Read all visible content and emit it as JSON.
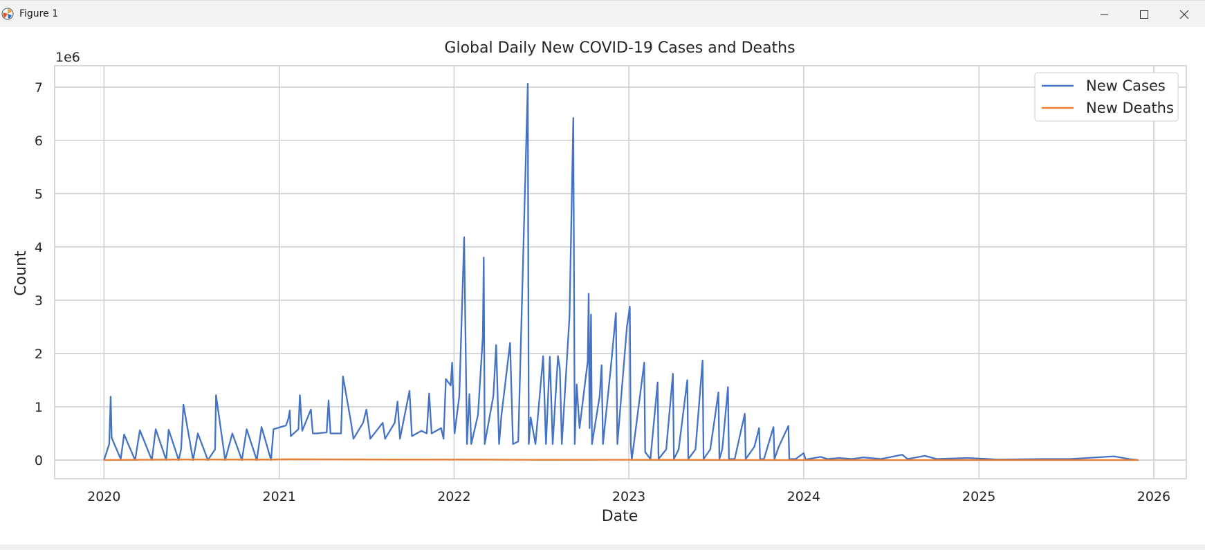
{
  "window": {
    "title": "Figure 1",
    "controls": [
      "minimize-icon",
      "maximize-icon",
      "close-icon"
    ]
  },
  "chart_data": {
    "type": "line",
    "title": "Global Daily New COVID-19 Cases and Deaths",
    "xlabel": "Date",
    "ylabel": "Count",
    "y_offset_label": "1e6",
    "xlim": [
      "2019-09-20",
      "2026-03-10"
    ],
    "ylim": [
      -0.35,
      7.4
    ],
    "x_ticks": [
      "2020",
      "2021",
      "2022",
      "2023",
      "2024",
      "2025",
      "2026"
    ],
    "y_ticks": [
      "0",
      "1",
      "2",
      "3",
      "4",
      "5",
      "6",
      "7"
    ],
    "grid": true,
    "legend": "top-right",
    "series": [
      {
        "name": "New Cases",
        "color": "#4472c4",
        "points": [
          [
            "2020-01-01",
            0.0
          ],
          [
            "2020-01-12",
            0.3
          ],
          [
            "2020-01-15",
            1.19
          ],
          [
            "2020-01-17",
            0.42
          ],
          [
            "2020-02-05",
            0.02
          ],
          [
            "2020-02-12",
            0.48
          ],
          [
            "2020-03-06",
            0.0
          ],
          [
            "2020-03-16",
            0.56
          ],
          [
            "2020-04-10",
            0.0
          ],
          [
            "2020-04-18",
            0.58
          ],
          [
            "2020-05-10",
            0.0
          ],
          [
            "2020-05-15",
            0.57
          ],
          [
            "2020-06-05",
            0.0
          ],
          [
            "2020-06-10",
            0.2
          ],
          [
            "2020-06-15",
            1.04
          ],
          [
            "2020-07-05",
            0.0
          ],
          [
            "2020-07-15",
            0.5
          ],
          [
            "2020-08-05",
            0.0
          ],
          [
            "2020-08-20",
            0.2
          ],
          [
            "2020-08-22",
            1.22
          ],
          [
            "2020-09-10",
            0.0
          ],
          [
            "2020-09-25",
            0.5
          ],
          [
            "2020-10-15",
            0.0
          ],
          [
            "2020-10-25",
            0.58
          ],
          [
            "2020-11-15",
            0.0
          ],
          [
            "2020-11-25",
            0.62
          ],
          [
            "2020-12-15",
            0.0
          ],
          [
            "2020-12-20",
            0.58
          ],
          [
            "2021-01-15",
            0.65
          ],
          [
            "2021-01-20",
            0.78
          ],
          [
            "2021-01-23",
            0.93
          ],
          [
            "2021-01-25",
            0.45
          ],
          [
            "2021-02-10",
            0.58
          ],
          [
            "2021-02-13",
            1.22
          ],
          [
            "2021-02-18",
            0.55
          ],
          [
            "2021-03-08",
            0.95
          ],
          [
            "2021-03-12",
            0.5
          ],
          [
            "2021-03-20",
            0.5
          ],
          [
            "2021-04-10",
            0.52
          ],
          [
            "2021-04-14",
            1.12
          ],
          [
            "2021-04-18",
            0.5
          ],
          [
            "2021-05-10",
            0.5
          ],
          [
            "2021-05-14",
            1.57
          ],
          [
            "2021-05-30",
            0.75
          ],
          [
            "2021-06-05",
            0.4
          ],
          [
            "2021-06-25",
            0.7
          ],
          [
            "2021-07-02",
            0.95
          ],
          [
            "2021-07-10",
            0.4
          ],
          [
            "2021-08-05",
            0.7
          ],
          [
            "2021-08-10",
            0.4
          ],
          [
            "2021-08-30",
            0.7
          ],
          [
            "2021-09-05",
            1.1
          ],
          [
            "2021-09-10",
            0.4
          ],
          [
            "2021-09-30",
            1.3
          ],
          [
            "2021-10-05",
            0.45
          ],
          [
            "2021-10-25",
            0.55
          ],
          [
            "2021-11-05",
            0.5
          ],
          [
            "2021-11-10",
            1.25
          ],
          [
            "2021-11-15",
            0.5
          ],
          [
            "2021-12-05",
            0.6
          ],
          [
            "2021-12-10",
            0.4
          ],
          [
            "2021-12-15",
            1.52
          ],
          [
            "2021-12-25",
            1.4
          ],
          [
            "2021-12-28",
            1.83
          ],
          [
            "2022-01-02",
            0.5
          ],
          [
            "2022-01-12",
            1.2
          ],
          [
            "2022-01-22",
            4.18
          ],
          [
            "2022-01-28",
            0.3
          ],
          [
            "2022-02-02",
            1.24
          ],
          [
            "2022-02-06",
            0.3
          ],
          [
            "2022-02-20",
            0.85
          ],
          [
            "2022-03-02",
            2.32
          ],
          [
            "2022-03-04",
            3.8
          ],
          [
            "2022-03-06",
            0.3
          ],
          [
            "2022-03-24",
            1.2
          ],
          [
            "2022-03-30",
            2.16
          ],
          [
            "2022-04-05",
            0.3
          ],
          [
            "2022-04-10",
            0.85
          ],
          [
            "2022-04-28",
            2.2
          ],
          [
            "2022-05-04",
            0.3
          ],
          [
            "2022-05-15",
            0.35
          ],
          [
            "2022-06-04",
            7.06
          ],
          [
            "2022-06-06",
            0.3
          ],
          [
            "2022-06-10",
            0.8
          ],
          [
            "2022-06-20",
            0.3
          ],
          [
            "2022-07-06",
            1.95
          ],
          [
            "2022-07-12",
            0.3
          ],
          [
            "2022-07-20",
            1.94
          ],
          [
            "2022-07-26",
            0.3
          ],
          [
            "2022-08-06",
            1.95
          ],
          [
            "2022-08-10",
            1.7
          ],
          [
            "2022-08-14",
            0.3
          ],
          [
            "2022-08-30",
            2.7
          ],
          [
            "2022-09-07",
            6.42
          ],
          [
            "2022-09-10",
            0.3
          ],
          [
            "2022-09-14",
            1.42
          ],
          [
            "2022-09-20",
            0.6
          ],
          [
            "2022-10-07",
            1.85
          ],
          [
            "2022-10-09",
            3.12
          ],
          [
            "2022-10-11",
            0.6
          ],
          [
            "2022-10-14",
            2.73
          ],
          [
            "2022-10-16",
            0.3
          ],
          [
            "2022-11-01",
            1.2
          ],
          [
            "2022-11-05",
            1.78
          ],
          [
            "2022-11-08",
            0.3
          ],
          [
            "2022-11-25",
            1.8
          ],
          [
            "2022-12-05",
            2.76
          ],
          [
            "2022-12-08",
            0.3
          ],
          [
            "2022-12-28",
            2.5
          ],
          [
            "2023-01-03",
            2.88
          ],
          [
            "2023-01-05",
            0.3
          ],
          [
            "2023-01-07",
            0.02
          ],
          [
            "2023-01-10",
            0.2
          ],
          [
            "2023-02-02",
            1.83
          ],
          [
            "2023-02-04",
            0.15
          ],
          [
            "2023-02-15",
            0.02
          ],
          [
            "2023-03-02",
            1.46
          ],
          [
            "2023-03-04",
            0.02
          ],
          [
            "2023-03-20",
            0.2
          ],
          [
            "2023-04-03",
            1.62
          ],
          [
            "2023-04-05",
            0.02
          ],
          [
            "2023-04-15",
            0.2
          ],
          [
            "2023-05-03",
            1.5
          ],
          [
            "2023-05-05",
            0.02
          ],
          [
            "2023-05-20",
            0.2
          ],
          [
            "2023-06-04",
            1.87
          ],
          [
            "2023-06-06",
            0.02
          ],
          [
            "2023-06-20",
            0.2
          ],
          [
            "2023-07-07",
            1.27
          ],
          [
            "2023-07-09",
            0.02
          ],
          [
            "2023-07-15",
            0.2
          ],
          [
            "2023-07-27",
            1.37
          ],
          [
            "2023-07-29",
            0.02
          ],
          [
            "2023-08-10",
            0.02
          ],
          [
            "2023-08-31",
            0.87
          ],
          [
            "2023-09-02",
            0.02
          ],
          [
            "2023-09-20",
            0.25
          ],
          [
            "2023-09-30",
            0.6
          ],
          [
            "2023-10-02",
            0.02
          ],
          [
            "2023-10-10",
            0.02
          ],
          [
            "2023-10-30",
            0.62
          ],
          [
            "2023-11-01",
            0.02
          ],
          [
            "2023-11-10",
            0.25
          ],
          [
            "2023-11-30",
            0.64
          ],
          [
            "2023-12-02",
            0.02
          ],
          [
            "2023-12-15",
            0.02
          ],
          [
            "2024-01-01",
            0.13
          ],
          [
            "2024-01-05",
            0.01
          ],
          [
            "2024-02-05",
            0.06
          ],
          [
            "2024-02-20",
            0.02
          ],
          [
            "2024-03-15",
            0.04
          ],
          [
            "2024-04-10",
            0.02
          ],
          [
            "2024-05-05",
            0.05
          ],
          [
            "2024-06-10",
            0.02
          ],
          [
            "2024-07-25",
            0.1
          ],
          [
            "2024-08-05",
            0.02
          ],
          [
            "2024-09-10",
            0.08
          ],
          [
            "2024-10-05",
            0.02
          ],
          [
            "2024-12-10",
            0.04
          ],
          [
            "2025-02-10",
            0.01
          ],
          [
            "2025-05-10",
            0.02
          ],
          [
            "2025-07-10",
            0.02
          ],
          [
            "2025-10-10",
            0.07
          ],
          [
            "2025-11-10",
            0.02
          ],
          [
            "2025-11-30",
            0.0
          ]
        ]
      },
      {
        "name": "New Deaths",
        "color": "#ed7d31",
        "points": [
          [
            "2020-01-01",
            0.0
          ],
          [
            "2020-06-15",
            0.012
          ],
          [
            "2020-12-15",
            0.011
          ],
          [
            "2021-01-20",
            0.016
          ],
          [
            "2021-04-20",
            0.013
          ],
          [
            "2021-08-20",
            0.011
          ],
          [
            "2021-12-20",
            0.009
          ],
          [
            "2022-03-01",
            0.01
          ],
          [
            "2022-07-01",
            0.004
          ],
          [
            "2022-12-01",
            0.006
          ],
          [
            "2023-03-01",
            0.004
          ],
          [
            "2023-08-01",
            0.002
          ],
          [
            "2024-01-01",
            0.001
          ],
          [
            "2025-01-01",
            0.0
          ],
          [
            "2025-11-30",
            0.0
          ]
        ]
      }
    ]
  }
}
